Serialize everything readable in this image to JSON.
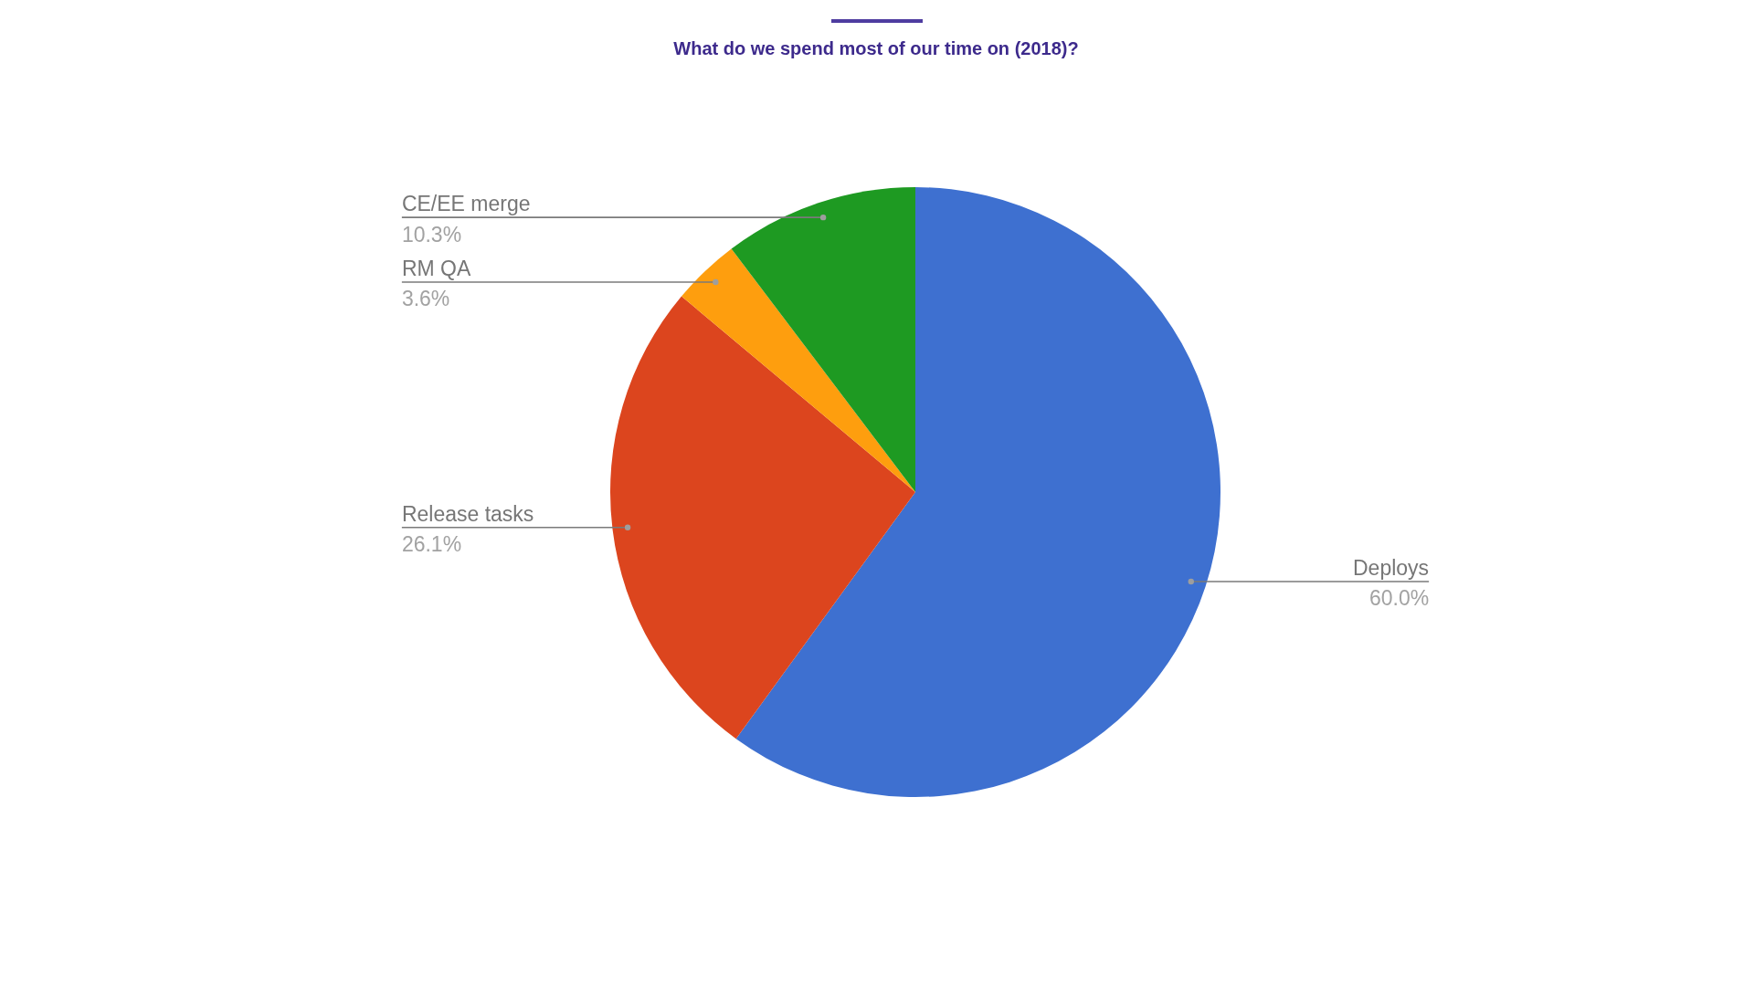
{
  "chart_data": {
    "type": "pie",
    "title": "What do we spend most of our time on (2018)?",
    "categories": [
      "Deploys",
      "Release tasks",
      "RM QA",
      "CE/EE merge"
    ],
    "values": [
      60.0,
      26.1,
      3.6,
      10.3
    ],
    "colors": [
      "#3e70d0",
      "#dc451e",
      "#fe9e0e",
      "#1e9a22"
    ],
    "value_labels": [
      "60.0%",
      "26.1%",
      "3.6%",
      "10.3%"
    ]
  }
}
